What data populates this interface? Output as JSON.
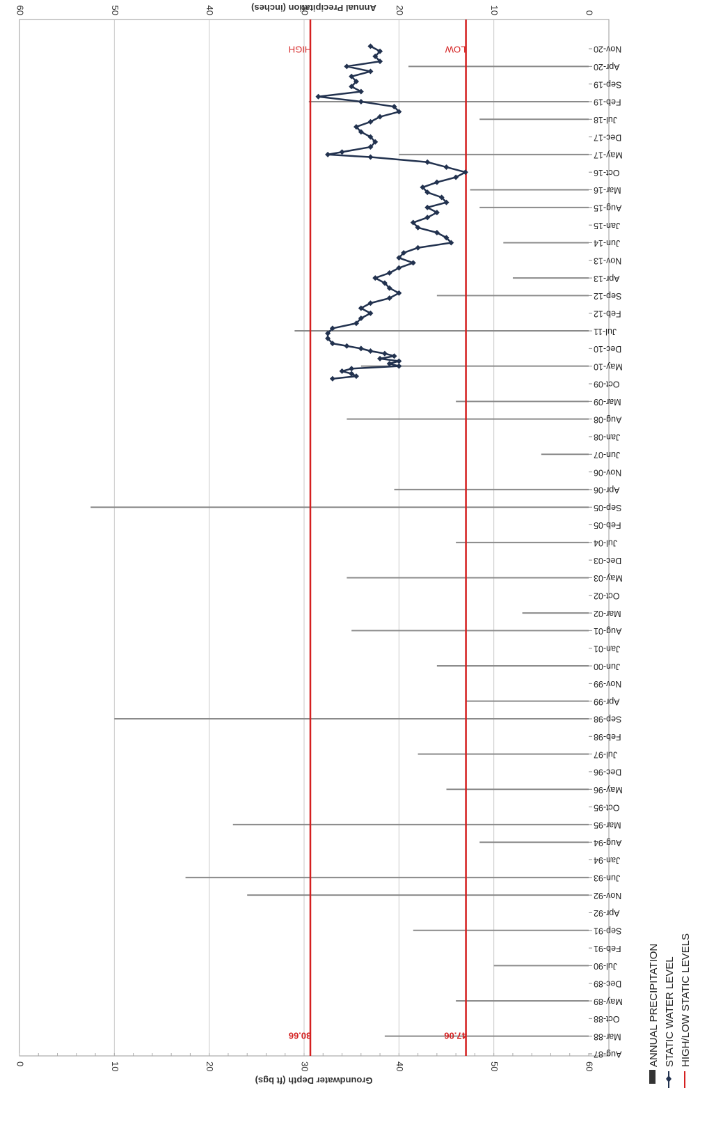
{
  "chart_data": {
    "type": "line",
    "orientation": "rotated-90",
    "bar_axis_label": "Annual Precipitation (inches)",
    "bar_ticks": [
      "60",
      "50",
      "40",
      "30",
      "20",
      "10",
      "0"
    ],
    "depth_axis_label": "Groundwater Depth (ft bgs)",
    "depth_ticks": [
      "0",
      "10",
      "20",
      "30",
      "40",
      "50",
      "60"
    ],
    "depth_range": [
      0,
      60
    ],
    "precip_range": [
      0,
      60
    ],
    "date_ticks": [
      "Aug-87",
      "Mar-88",
      "Oct-88",
      "May-89",
      "Dec-89",
      "Jul-90",
      "Feb-91",
      "Sep-91",
      "Apr-92",
      "Nov-92",
      "Jun-93",
      "Jan-94",
      "Aug-94",
      "Mar-95",
      "Oct-95",
      "May-96",
      "Dec-96",
      "Jul-97",
      "Feb-98",
      "Sep-98",
      "Apr-99",
      "Nov-99",
      "Jun-00",
      "Jan-01",
      "Aug-01",
      "Mar-02",
      "Oct-02",
      "May-03",
      "Dec-03",
      "Jul-04",
      "Feb-05",
      "Sep-05",
      "Apr-06",
      "Nov-06",
      "Jun-07",
      "Jan-08",
      "Aug-08",
      "Mar-09",
      "Oct-09",
      "May-10",
      "Dec-10",
      "Jul-11",
      "Feb-12",
      "Sep-12",
      "Apr-13",
      "Nov-13",
      "Jun-14",
      "Jan-15",
      "Aug-15",
      "Mar-16",
      "Oct-16",
      "May-17",
      "Dec-17",
      "Jul-18",
      "Feb-19",
      "Sep-19",
      "Apr-20",
      "Nov-20"
    ],
    "grid": true,
    "series": [
      {
        "name": "ANNUAL PRECIPITATION",
        "kind": "bar",
        "color": "#8a8a8a",
        "points": [
          {
            "date": "1988-03",
            "value": 21.5
          },
          {
            "date": "1989-05",
            "value": 14.0
          },
          {
            "date": "1990-07",
            "value": 10.0
          },
          {
            "date": "1991-09",
            "value": 18.5
          },
          {
            "date": "1992-11",
            "value": 36.0
          },
          {
            "date": "1993-06",
            "value": 42.5
          },
          {
            "date": "1994-08",
            "value": 11.5
          },
          {
            "date": "1995-03",
            "value": 37.5
          },
          {
            "date": "1996-05",
            "value": 15.0
          },
          {
            "date": "1997-07",
            "value": 18.0
          },
          {
            "date": "1998-09",
            "value": 50.0
          },
          {
            "date": "1999-04",
            "value": 13.0
          },
          {
            "date": "2000-06",
            "value": 16.0
          },
          {
            "date": "2001-08",
            "value": 25.0
          },
          {
            "date": "2002-03",
            "value": 7.0
          },
          {
            "date": "2003-05",
            "value": 25.5
          },
          {
            "date": "2004-07",
            "value": 14.0
          },
          {
            "date": "2005-09",
            "value": 52.5
          },
          {
            "date": "2006-04",
            "value": 20.5
          },
          {
            "date": "2007-06",
            "value": 5.0
          },
          {
            "date": "2008-08",
            "value": 25.5
          },
          {
            "date": "2009-03",
            "value": 14.0
          },
          {
            "date": "2010-05",
            "value": 24.0
          },
          {
            "date": "2011-07",
            "value": 31.0
          },
          {
            "date": "2012-09",
            "value": 16.0
          },
          {
            "date": "2013-04",
            "value": 8.0
          },
          {
            "date": "2014-06",
            "value": 9.0
          },
          {
            "date": "2015-08",
            "value": 11.5
          },
          {
            "date": "2016-03",
            "value": 12.5
          },
          {
            "date": "2017-05",
            "value": 20.0
          },
          {
            "date": "2018-07",
            "value": 11.5
          },
          {
            "date": "2019-02",
            "value": 29.5
          },
          {
            "date": "2020-04",
            "value": 19.0
          }
        ]
      },
      {
        "name": "STATIC WATER LEVEL",
        "kind": "line",
        "color": "#22324f",
        "points": [
          {
            "date": "2009-12",
            "value": 33.0
          },
          {
            "date": "2010-01",
            "value": 35.5
          },
          {
            "date": "2010-02",
            "value": 35.0
          },
          {
            "date": "2010-03",
            "value": 34.0
          },
          {
            "date": "2010-04",
            "value": 35.0
          },
          {
            "date": "2010-05",
            "value": 40.0
          },
          {
            "date": "2010-06",
            "value": 39.0
          },
          {
            "date": "2010-07",
            "value": 40.0
          },
          {
            "date": "2010-08",
            "value": 38.0
          },
          {
            "date": "2010-09",
            "value": 39.5
          },
          {
            "date": "2010-10",
            "value": 38.5
          },
          {
            "date": "2010-11",
            "value": 37.0
          },
          {
            "date": "2010-12",
            "value": 36.0
          },
          {
            "date": "2011-01",
            "value": 34.5
          },
          {
            "date": "2011-02",
            "value": 33.0
          },
          {
            "date": "2011-04",
            "value": 32.5
          },
          {
            "date": "2011-06",
            "value": 32.5
          },
          {
            "date": "2011-08",
            "value": 33.0
          },
          {
            "date": "2011-10",
            "value": 35.5
          },
          {
            "date": "2011-12",
            "value": 36.0
          },
          {
            "date": "2012-02",
            "value": 37.0
          },
          {
            "date": "2012-04",
            "value": 36.0
          },
          {
            "date": "2012-06",
            "value": 37.0
          },
          {
            "date": "2012-08",
            "value": 39.0
          },
          {
            "date": "2012-10",
            "value": 40.0
          },
          {
            "date": "2012-12",
            "value": 39.0
          },
          {
            "date": "2013-02",
            "value": 38.5
          },
          {
            "date": "2013-04",
            "value": 37.5
          },
          {
            "date": "2013-06",
            "value": 39.0
          },
          {
            "date": "2013-08",
            "value": 40.0
          },
          {
            "date": "2013-10",
            "value": 41.5
          },
          {
            "date": "2013-12",
            "value": 40.0
          },
          {
            "date": "2014-02",
            "value": 40.5
          },
          {
            "date": "2014-04",
            "value": 42.0
          },
          {
            "date": "2014-06",
            "value": 45.5
          },
          {
            "date": "2014-08",
            "value": 45.0
          },
          {
            "date": "2014-10",
            "value": 44.0
          },
          {
            "date": "2014-12",
            "value": 42.0
          },
          {
            "date": "2015-02",
            "value": 41.5
          },
          {
            "date": "2015-04",
            "value": 43.0
          },
          {
            "date": "2015-06",
            "value": 44.0
          },
          {
            "date": "2015-08",
            "value": 43.0
          },
          {
            "date": "2015-10",
            "value": 45.0
          },
          {
            "date": "2015-12",
            "value": 44.5
          },
          {
            "date": "2016-02",
            "value": 43.0
          },
          {
            "date": "2016-04",
            "value": 42.5
          },
          {
            "date": "2016-06",
            "value": 44.0
          },
          {
            "date": "2016-08",
            "value": 46.0
          },
          {
            "date": "2016-10",
            "value": 47.0
          },
          {
            "date": "2016-12",
            "value": 45.0
          },
          {
            "date": "2017-02",
            "value": 43.0
          },
          {
            "date": "2017-04",
            "value": 37.0
          },
          {
            "date": "2017-05",
            "value": 32.5
          },
          {
            "date": "2017-06",
            "value": 34.0
          },
          {
            "date": "2017-08",
            "value": 37.0
          },
          {
            "date": "2017-10",
            "value": 37.5
          },
          {
            "date": "2017-12",
            "value": 37.0
          },
          {
            "date": "2018-02",
            "value": 36.0
          },
          {
            "date": "2018-04",
            "value": 35.5
          },
          {
            "date": "2018-06",
            "value": 37.0
          },
          {
            "date": "2018-08",
            "value": 38.0
          },
          {
            "date": "2018-10",
            "value": 40.0
          },
          {
            "date": "2018-12",
            "value": 39.5
          },
          {
            "date": "2019-02",
            "value": 36.0
          },
          {
            "date": "2019-04",
            "value": 31.5
          },
          {
            "date": "2019-06",
            "value": 36.0
          },
          {
            "date": "2019-08",
            "value": 35.0
          },
          {
            "date": "2019-10",
            "value": 35.5
          },
          {
            "date": "2019-12",
            "value": 35.0
          },
          {
            "date": "2020-02",
            "value": 37.0
          },
          {
            "date": "2020-04",
            "value": 34.5
          },
          {
            "date": "2020-06",
            "value": 38.0
          },
          {
            "date": "2020-08",
            "value": 37.5
          },
          {
            "date": "2020-10",
            "value": 38.0
          },
          {
            "date": "2020-12",
            "value": 37.0
          }
        ]
      }
    ],
    "reference_lines": [
      {
        "name": "HIGH",
        "value_label": "30.66",
        "depth": 30.66,
        "color": "#d42020"
      },
      {
        "name": "LOW",
        "value_label": "47.06",
        "depth": 47.06,
        "color": "#d42020"
      }
    ],
    "legend_position": "bottom-right",
    "legend": [
      "ANNUAL PRECIPITATION",
      "STATIC WATER LEVEL",
      "HIGH/LOW STATIC LEVELS"
    ]
  }
}
